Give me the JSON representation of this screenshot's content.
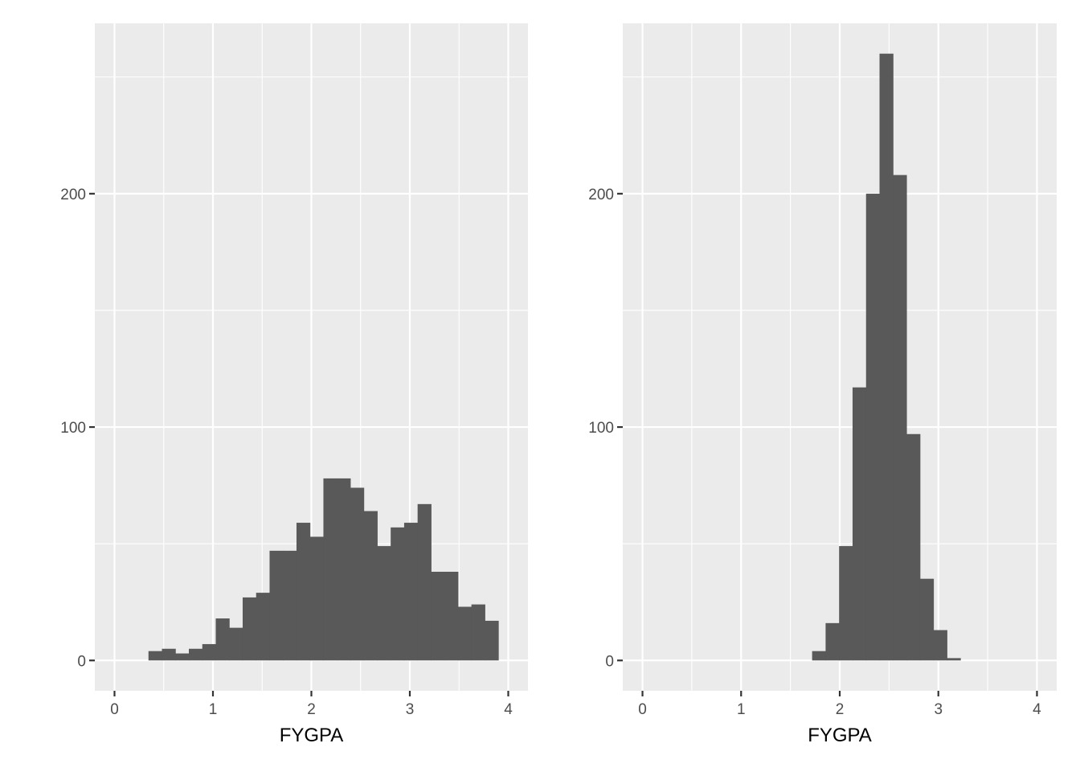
{
  "chart_data": [
    {
      "type": "bar",
      "xlabel": "FYGPA",
      "ylabel": "",
      "xlim": [
        -0.2,
        4.2
      ],
      "ylim": [
        -13,
        273
      ],
      "x_ticks": [
        0,
        1,
        2,
        3,
        4
      ],
      "y_ticks": [
        0,
        100,
        200
      ],
      "x_tick_labels": [
        "0",
        "1",
        "2",
        "3",
        "4"
      ],
      "y_tick_labels": [
        "0",
        "100",
        "200"
      ],
      "bin_width": 0.1367,
      "bin_start": 0.345,
      "values": [
        4,
        5,
        3,
        5,
        7,
        18,
        14,
        27,
        29,
        47,
        47,
        59,
        53,
        78,
        78,
        74,
        64,
        49,
        57,
        59,
        67,
        38,
        38,
        23,
        24,
        17
      ],
      "grid": true
    },
    {
      "type": "bar",
      "xlabel": "FYGPA",
      "ylabel": "",
      "xlim": [
        -0.2,
        4.2
      ],
      "ylim": [
        -13,
        273
      ],
      "x_ticks": [
        0,
        1,
        2,
        3,
        4
      ],
      "y_ticks": [
        0,
        100,
        200
      ],
      "x_tick_labels": [
        "0",
        "1",
        "2",
        "3",
        "4"
      ],
      "y_tick_labels": [
        "0",
        "100",
        "200"
      ],
      "bin_width": 0.1367,
      "bin_start": 1.72,
      "values": [
        4,
        16,
        49,
        117,
        200,
        260,
        208,
        97,
        35,
        13,
        1
      ],
      "grid": true
    }
  ]
}
